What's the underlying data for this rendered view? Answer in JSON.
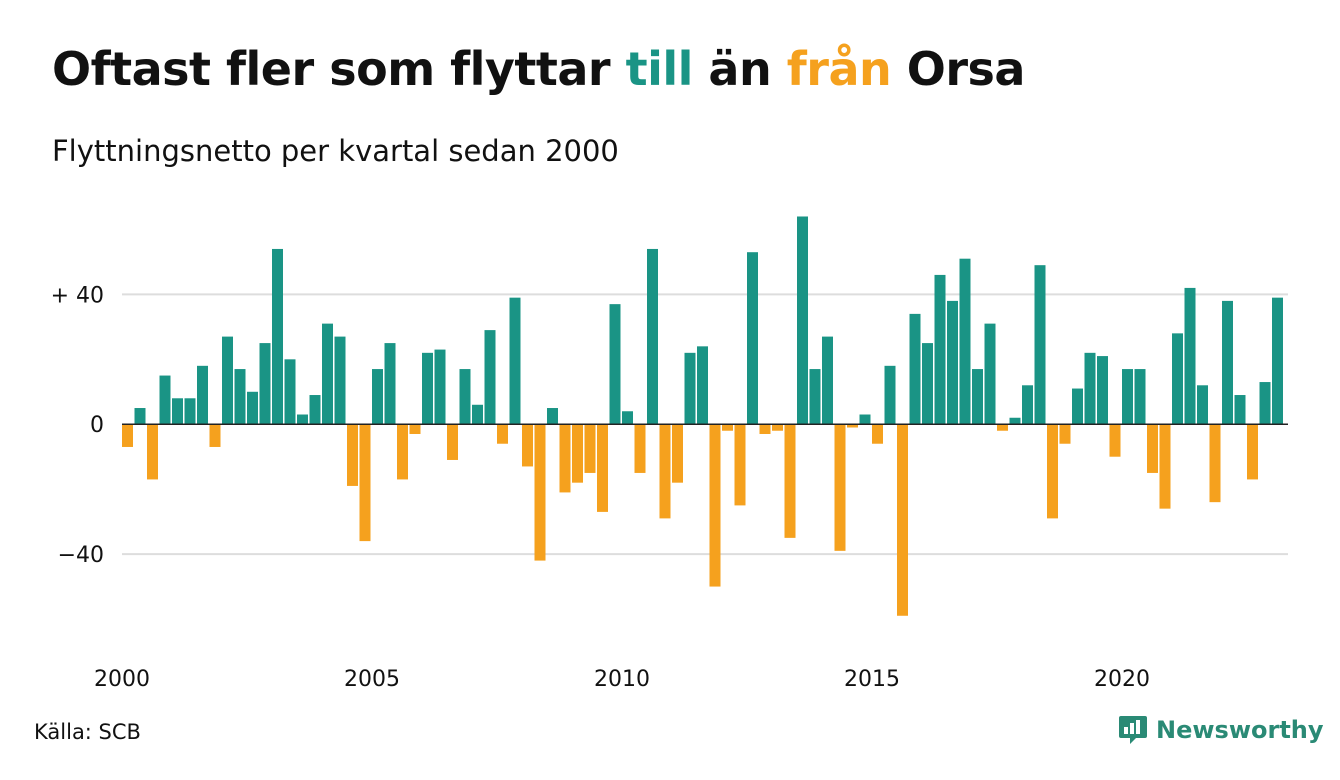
{
  "title": {
    "part1": "Oftast fler som flyttar ",
    "part2": "till",
    "part3": " än ",
    "part4": "från",
    "part5": " Orsa"
  },
  "subtitle": "Flyttningsnetto per kvartal sedan 2000",
  "source": "Källa: SCB",
  "brand": "Newsworthy",
  "colors": {
    "positive": "#1a9485",
    "negative": "#f5a11e",
    "grid": "#dddddd",
    "baseline": "#222222",
    "brand": "#2a8a75"
  },
  "chart_data": {
    "type": "bar",
    "x_start": 2000,
    "periods_per_year": 4,
    "ylim": [
      -64,
      66
    ],
    "y_ticks": [
      {
        "value": 40,
        "label": "+ 40"
      },
      {
        "value": 0,
        "label": "0"
      },
      {
        "value": -40,
        "label": "−40"
      }
    ],
    "x_ticks": [
      {
        "value": 2000,
        "label": "2000"
      },
      {
        "value": 2005,
        "label": "2005"
      },
      {
        "value": 2010,
        "label": "2010"
      },
      {
        "value": 2015,
        "label": "2015"
      },
      {
        "value": 2020,
        "label": "2020"
      }
    ],
    "values": [
      -7,
      5,
      -17,
      15,
      8,
      8,
      18,
      -7,
      27,
      17,
      10,
      25,
      54,
      20,
      3,
      9,
      31,
      27,
      -19,
      -36,
      17,
      25,
      -17,
      -3,
      22,
      23,
      -11,
      17,
      6,
      29,
      -6,
      39,
      -13,
      -42,
      5,
      -21,
      -18,
      -15,
      -27,
      37,
      4,
      -15,
      54,
      -29,
      -18,
      22,
      24,
      -50,
      -2,
      -25,
      53,
      -3,
      -2,
      -35,
      64,
      17,
      27,
      -39,
      -1,
      3,
      -6,
      18,
      -59,
      34,
      25,
      46,
      38,
      51,
      17,
      31,
      -2,
      2,
      12,
      49,
      -29,
      -6,
      11,
      22,
      21,
      -10,
      17,
      17,
      -15,
      -26,
      28,
      42,
      12,
      -24,
      38,
      9,
      -17,
      13,
      39
    ]
  }
}
